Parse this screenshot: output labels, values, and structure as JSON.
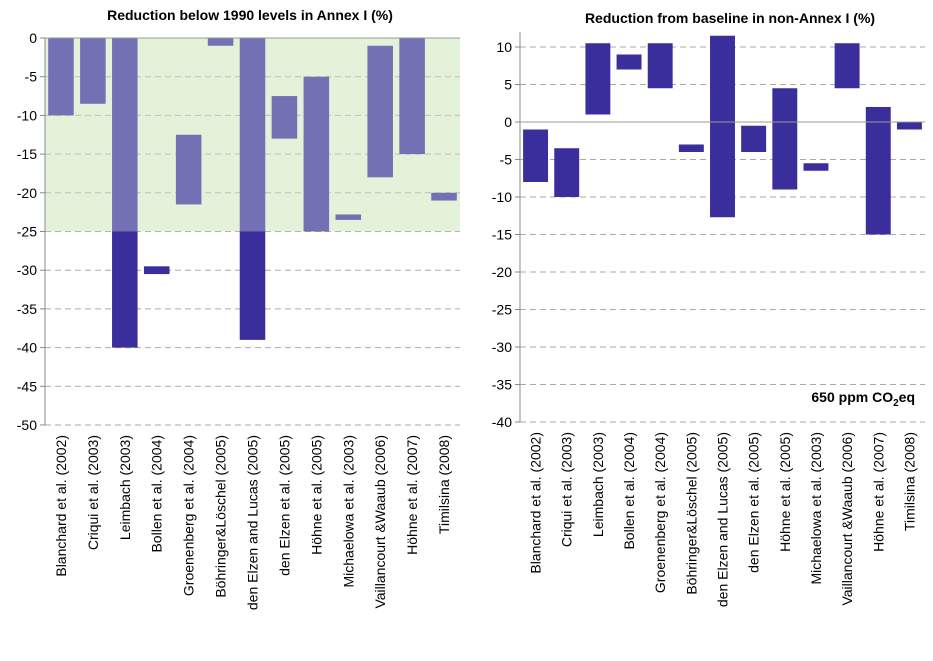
{
  "chart_data": [
    {
      "type": "floating-bar",
      "title": "Reduction below 1990 levels in Annex I (%)",
      "categories": [
        "Blanchard et al. (2002)",
        "Criqui et al. (2003)",
        "Leimbach (2003)",
        "Bollen et al. (2004)",
        "Groenenberg et al. (2004)",
        "Böhringer&Löschel (2005)",
        "den Elzen and Lucas (2005)",
        "den Elzen et al. (2005)",
        "Höhne et al. (2005)",
        "Michaelowa et al. (2003)",
        "Vaillancourt &Waaub (2006)",
        "Höhne et al. (2007)",
        "Timilsina (2008)"
      ],
      "values": [
        [
          0,
          -10
        ],
        [
          0,
          -8.5
        ],
        [
          0,
          -40
        ],
        [
          -29.5,
          -30.5
        ],
        [
          -12.5,
          -21.5
        ],
        [
          0,
          -1
        ],
        [
          0,
          -39
        ],
        [
          -7.5,
          -13
        ],
        [
          -5,
          -25
        ],
        [
          -22.8,
          -23.5
        ],
        [
          -1,
          -18
        ],
        [
          0,
          -15
        ],
        [
          -20,
          -21
        ]
      ],
      "color": "#3a2d9c",
      "shaded_range": [
        0,
        -25
      ],
      "shade_color": "#e6f5d8",
      "ylim": [
        -50,
        0
      ],
      "yticks": [
        0,
        -5,
        -10,
        -15,
        -20,
        -25,
        -30,
        -35,
        -40,
        -45,
        -50
      ],
      "grid": true
    },
    {
      "type": "floating-bar",
      "title": "Reduction from baseline in non-Annex I (%)",
      "categories": [
        "Blanchard et al. (2002)",
        "Criqui et al. (2003)",
        "Leimbach (2003)",
        "Bollen et al. (2004)",
        "Groenenberg et al. (2004)",
        "Böhringer&Löschel (2005)",
        "den Elzen and Lucas (2005)",
        "den Elzen et al. (2005)",
        "Höhne et al. (2005)",
        "Michaelowa et al. (2003)",
        "Vaillancourt &Waaub (2006)",
        "Höhne et al. (2007)",
        "Timilsina (2008)"
      ],
      "values": [
        [
          -1,
          -8
        ],
        [
          -3.5,
          -10
        ],
        [
          10.5,
          1
        ],
        [
          9,
          7
        ],
        [
          10.5,
          4.5
        ],
        [
          -3,
          -4
        ],
        [
          11.5,
          -12.7
        ],
        [
          -0.5,
          -4
        ],
        [
          4.5,
          -9
        ],
        [
          -5.5,
          -6.5
        ],
        [
          10.5,
          4.5
        ],
        [
          2,
          -15
        ],
        [
          0,
          -1
        ]
      ],
      "color": "#3a2d9c",
      "annotation": {
        "text": "650 ppm CO",
        "sub": "2",
        "suffix": "eq"
      },
      "ylim": [
        -40,
        12
      ],
      "yticks": [
        10,
        5,
        0,
        -5,
        -10,
        -15,
        -20,
        -25,
        -30,
        -35,
        -40
      ],
      "grid": true
    }
  ]
}
